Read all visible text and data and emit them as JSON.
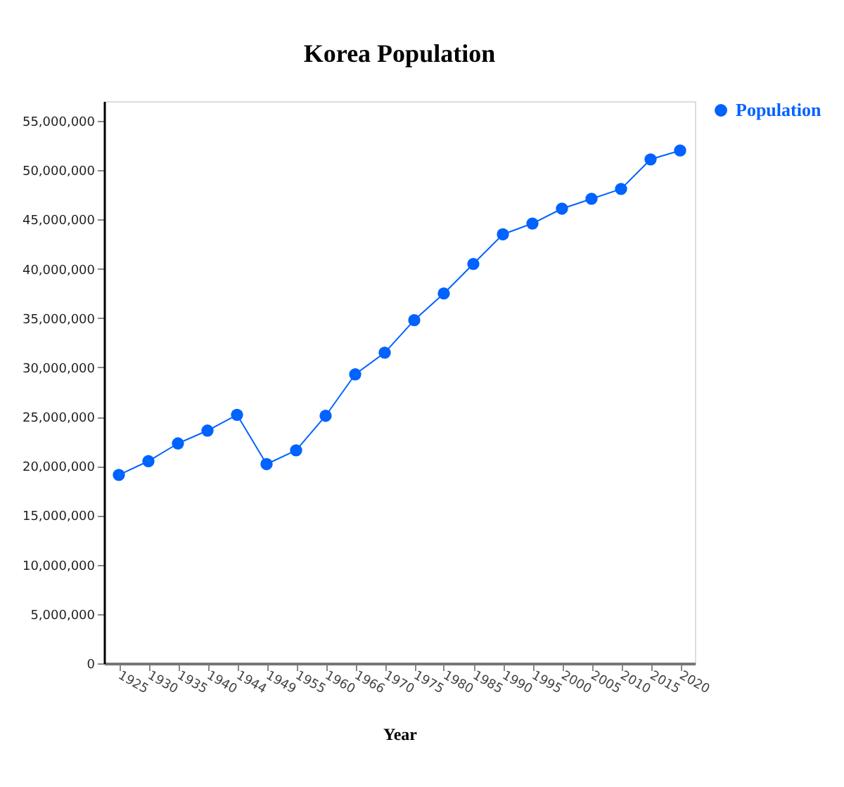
{
  "chart_data": {
    "type": "line",
    "title": "Korea Population",
    "xlabel": "Year",
    "categories": [
      "1925",
      "1930",
      "1935",
      "1940",
      "1944",
      "1949",
      "1955",
      "1960",
      "1966",
      "1970",
      "1975",
      "1980",
      "1985",
      "1990",
      "1995",
      "2000",
      "2005",
      "2010",
      "2015",
      "2020"
    ],
    "series": [
      {
        "name": "Population",
        "color": "#0062ff",
        "values": [
          19100000,
          20500000,
          22300000,
          23600000,
          25200000,
          20200000,
          21600000,
          25100000,
          29300000,
          31500000,
          34800000,
          37500000,
          40500000,
          43500000,
          44600000,
          46100000,
          47100000,
          48100000,
          51100000,
          52000000
        ]
      }
    ],
    "ylim": [
      0,
      57000000
    ],
    "yticks": [
      0,
      {
        "value": 5000000,
        "label": "5,000,000"
      },
      {
        "value": 10000000,
        "label": "10,000,000"
      },
      {
        "value": 15000000,
        "label": "15,000,000"
      },
      {
        "value": 20000000,
        "label": "20,000,000"
      },
      {
        "value": 25000000,
        "label": "25,000,000"
      },
      {
        "value": 30000000,
        "label": "30,000,000"
      },
      {
        "value": 35000000,
        "label": "35,000,000"
      },
      {
        "value": 40000000,
        "label": "40,000,000"
      },
      {
        "value": 45000000,
        "label": "45,000,000"
      },
      {
        "value": 50000000,
        "label": "50,000,000"
      },
      {
        "value": 55000000,
        "label": "55,000,000"
      }
    ],
    "marker": "circle",
    "line_style": "solid",
    "legend": "top right",
    "grid": false
  }
}
